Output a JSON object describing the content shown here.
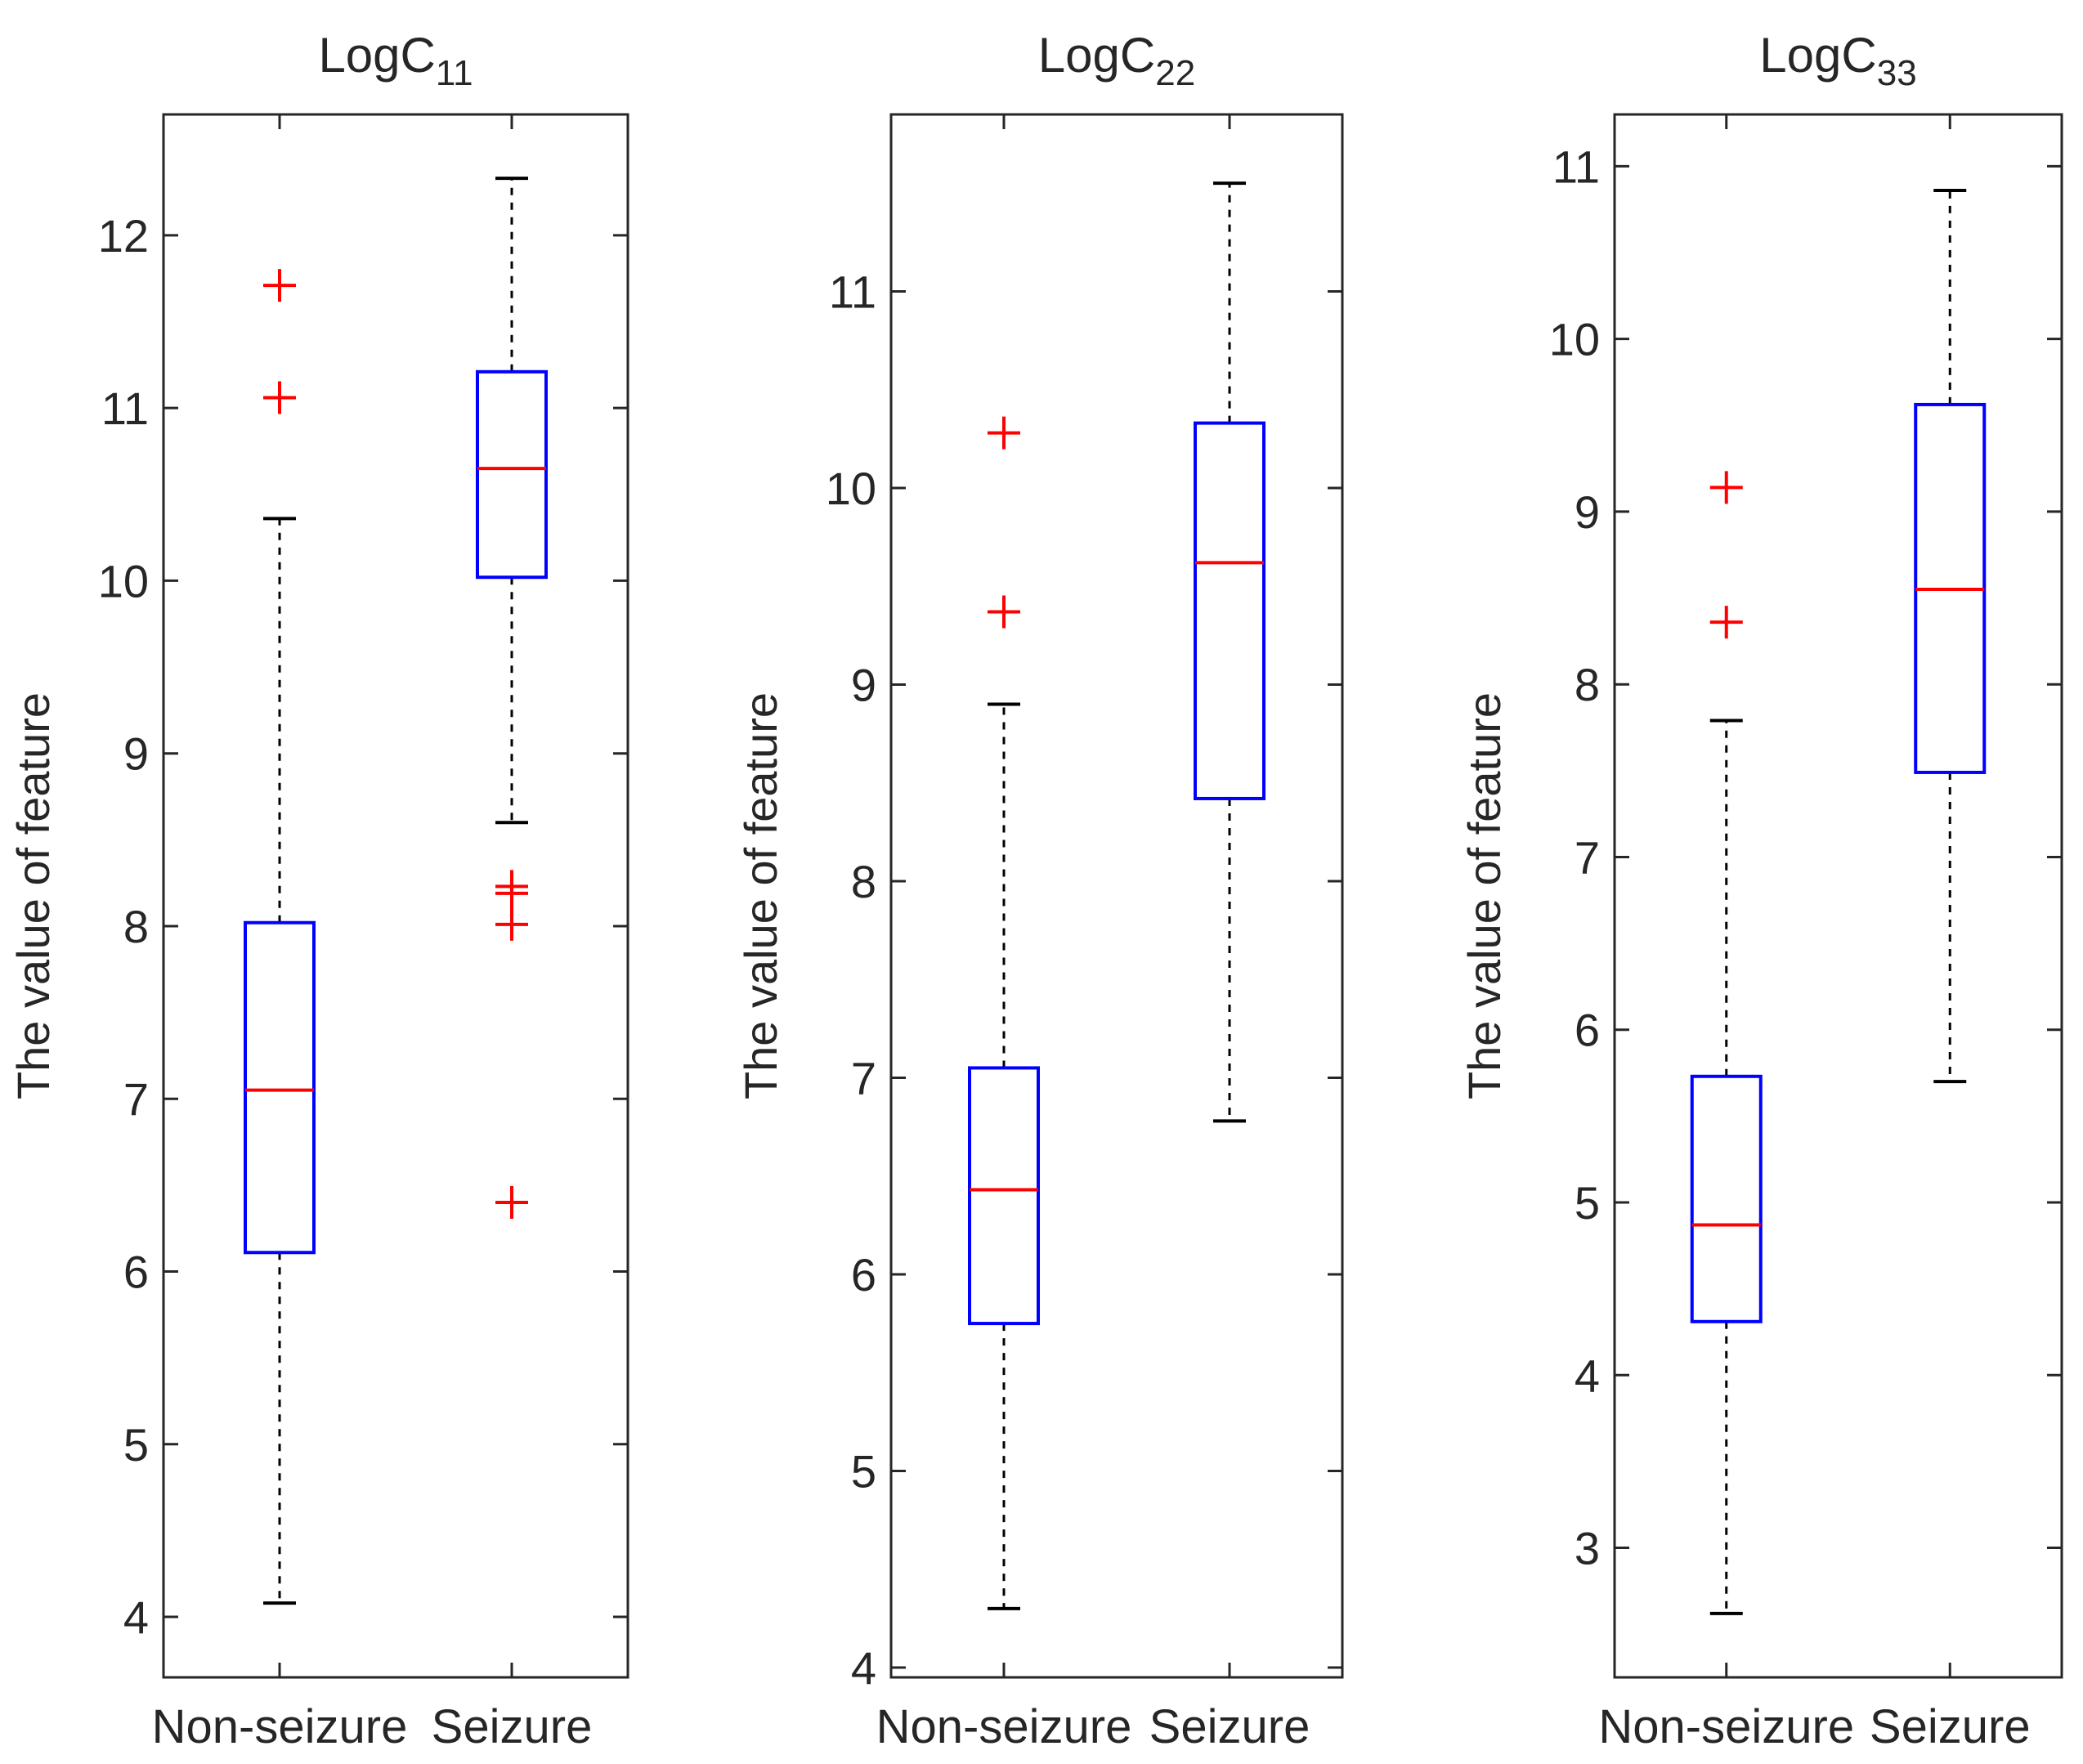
{
  "chart_data": [
    {
      "type": "box",
      "title": "LogC",
      "title_sub": "11",
      "ylabel": "The value of feature",
      "categories": [
        "Non-seizure",
        "Seizure"
      ],
      "ylim": [
        3.65,
        12.7
      ],
      "yticks": [
        4,
        5,
        6,
        7,
        8,
        9,
        10,
        11,
        12
      ],
      "box_color": "#0000ff",
      "median_color": "#ff0000",
      "outlier_color": "#ff0000",
      "boxes": [
        {
          "category": "Non-seizure",
          "whisker_low": 4.08,
          "q1": 6.11,
          "median": 7.05,
          "q3": 8.02,
          "whisker_high": 10.36,
          "outliers": [
            11.06,
            11.71
          ]
        },
        {
          "category": "Seizure",
          "whisker_low": 8.6,
          "q1": 10.02,
          "median": 10.65,
          "q3": 11.21,
          "whisker_high": 12.33,
          "outliers": [
            6.4,
            8.01,
            8.19,
            8.23
          ]
        }
      ]
    },
    {
      "type": "box",
      "title": "LogC",
      "title_sub": "22",
      "ylabel": "The value of feature",
      "categories": [
        "Non-seizure",
        "Seizure"
      ],
      "ylim": [
        3.95,
        11.9
      ],
      "yticks": [
        4,
        5,
        6,
        7,
        8,
        9,
        10,
        11
      ],
      "box_color": "#0000ff",
      "median_color": "#ff0000",
      "outlier_color": "#ff0000",
      "boxes": [
        {
          "category": "Non-seizure",
          "whisker_low": 4.3,
          "q1": 5.75,
          "median": 6.43,
          "q3": 7.05,
          "whisker_high": 8.9,
          "outliers": [
            9.37,
            10.28
          ]
        },
        {
          "category": "Seizure",
          "whisker_low": 6.78,
          "q1": 8.42,
          "median": 9.62,
          "q3": 10.33,
          "whisker_high": 11.55,
          "outliers": []
        }
      ]
    },
    {
      "type": "box",
      "title": "LogC",
      "title_sub": "33",
      "ylabel": "The value of feature",
      "categories": [
        "Non-seizure",
        "Seizure"
      ],
      "ylim": [
        2.25,
        11.3
      ],
      "yticks": [
        3,
        4,
        5,
        6,
        7,
        8,
        9,
        10,
        11
      ],
      "box_color": "#0000ff",
      "median_color": "#ff0000",
      "outlier_color": "#ff0000",
      "boxes": [
        {
          "category": "Non-seizure",
          "whisker_low": 2.62,
          "q1": 4.31,
          "median": 4.87,
          "q3": 5.73,
          "whisker_high": 7.79,
          "outliers": [
            8.36,
            9.14
          ]
        },
        {
          "category": "Seizure",
          "whisker_low": 5.7,
          "q1": 7.49,
          "median": 8.55,
          "q3": 9.62,
          "whisker_high": 10.86,
          "outliers": []
        }
      ]
    }
  ]
}
